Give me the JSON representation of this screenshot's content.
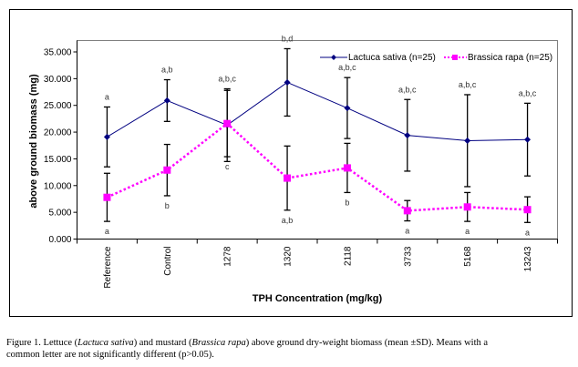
{
  "chart_data": {
    "type": "line",
    "title": "",
    "xlabel": "TPH Concentration (mg/kg)",
    "ylabel": "above ground biomass (mg)",
    "ylim": [
      0,
      35
    ],
    "yticks": [
      0,
      5,
      10,
      15,
      20,
      25,
      30,
      35
    ],
    "ytick_labels": [
      "0.000",
      "5.000",
      "10.000",
      "15.000",
      "20.000",
      "25.000",
      "30.000",
      "35.000"
    ],
    "categories": [
      "Reference",
      "Control",
      "1278",
      "1320",
      "2118",
      "3733",
      "5168",
      "13243"
    ],
    "grid": false,
    "legend_position": "top-right",
    "series": [
      {
        "name": "Lactuca sativa (n=25)",
        "color": "#000080",
        "marker": "diamond",
        "line_style": "solid",
        "values": [
          19.1,
          25.9,
          21.3,
          29.3,
          24.5,
          19.4,
          18.4,
          18.6
        ],
        "sd": [
          5.6,
          3.9,
          6.8,
          6.3,
          5.7,
          6.7,
          8.6,
          6.8
        ],
        "annotations": [
          "a",
          "a,b",
          "a,b,c",
          "b,d",
          "a,b,c",
          "a,b,c",
          "a,b,c",
          "a,b,c"
        ],
        "annotation_position": "above"
      },
      {
        "name": "Brassica rapa (n=25)",
        "color": "#FF00FF",
        "marker": "square",
        "line_style": "dotted",
        "values": [
          7.8,
          12.9,
          21.6,
          11.4,
          13.3,
          5.3,
          6.0,
          5.5
        ],
        "sd": [
          4.5,
          4.8,
          6.2,
          6.0,
          4.6,
          1.9,
          2.7,
          2.4
        ],
        "annotations": [
          "a",
          "b",
          "c",
          "a,b",
          "b",
          "a",
          "a",
          "a"
        ],
        "annotation_position": "below"
      }
    ]
  },
  "caption": {
    "line1_prefix": "Figure 1.  Lettuce (",
    "lettuce_latin": "Lactuca sativa",
    "line1_mid": ") and mustard (",
    "mustard_latin": "Brassica rapa",
    "line1_suffix": ") above ground dry-weight biomass (mean ±SD).  Means with a",
    "line2": "common letter are not significantly different (p>0.05)."
  }
}
